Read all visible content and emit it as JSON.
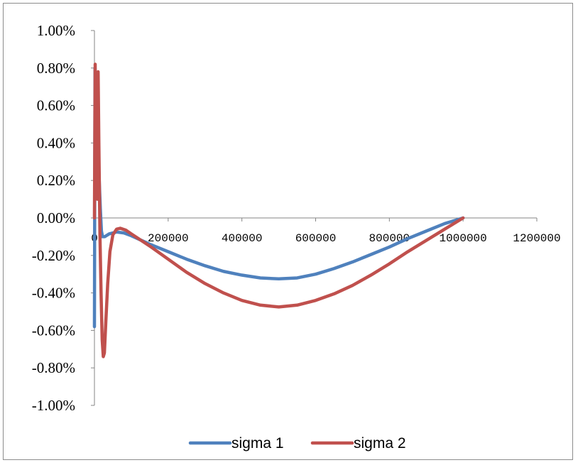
{
  "chart_data": {
    "type": "line",
    "title": "",
    "xlabel": "",
    "ylabel": "",
    "xlim": [
      0,
      1200000
    ],
    "ylim": [
      -1.0,
      1.0
    ],
    "y_unit": "%",
    "grid": false,
    "legend_position": "bottom",
    "x_ticks": [
      {
        "value": 0,
        "label": "0"
      },
      {
        "value": 200000,
        "label": "200000"
      },
      {
        "value": 400000,
        "label": "400000"
      },
      {
        "value": 600000,
        "label": "600000"
      },
      {
        "value": 800000,
        "label": "800000"
      },
      {
        "value": 1000000,
        "label": "1000000"
      },
      {
        "value": 1200000,
        "label": "1200000"
      }
    ],
    "y_ticks": [
      {
        "value": 1.0,
        "label": "1.00%"
      },
      {
        "value": 0.8,
        "label": "0.80%"
      },
      {
        "value": 0.6,
        "label": "0.60%"
      },
      {
        "value": 0.4,
        "label": "0.40%"
      },
      {
        "value": 0.2,
        "label": "0.20%"
      },
      {
        "value": 0.0,
        "label": "0.00%"
      },
      {
        "value": -0.2,
        "label": "-0.20%"
      },
      {
        "value": -0.4,
        "label": "-0.40%"
      },
      {
        "value": -0.6,
        "label": "-0.60%"
      },
      {
        "value": -0.8,
        "label": "-0.80%"
      },
      {
        "value": -1.0,
        "label": "-1.00%"
      }
    ],
    "series": [
      {
        "name": "sigma 1",
        "color": "#4f81bd",
        "points": [
          [
            0,
            -0.58
          ],
          [
            1500,
            0.8
          ],
          [
            4000,
            0.6
          ],
          [
            7000,
            0.45
          ],
          [
            10000,
            0.35
          ],
          [
            13000,
            0.2
          ],
          [
            16000,
            0.05
          ],
          [
            19000,
            -0.07
          ],
          [
            22000,
            -0.1
          ],
          [
            28000,
            -0.1
          ],
          [
            40000,
            -0.085
          ],
          [
            60000,
            -0.075
          ],
          [
            80000,
            -0.08
          ],
          [
            100000,
            -0.095
          ],
          [
            150000,
            -0.14
          ],
          [
            200000,
            -0.18
          ],
          [
            250000,
            -0.22
          ],
          [
            300000,
            -0.255
          ],
          [
            350000,
            -0.285
          ],
          [
            400000,
            -0.305
          ],
          [
            450000,
            -0.32
          ],
          [
            500000,
            -0.325
          ],
          [
            550000,
            -0.32
          ],
          [
            600000,
            -0.3
          ],
          [
            650000,
            -0.27
          ],
          [
            700000,
            -0.235
          ],
          [
            750000,
            -0.195
          ],
          [
            800000,
            -0.155
          ],
          [
            850000,
            -0.11
          ],
          [
            900000,
            -0.07
          ],
          [
            950000,
            -0.03
          ],
          [
            1000000,
            0.0
          ]
        ]
      },
      {
        "name": "sigma 2",
        "color": "#c0504d",
        "points": [
          [
            0,
            0.0
          ],
          [
            2000,
            0.82
          ],
          [
            4000,
            0.15
          ],
          [
            6000,
            0.45
          ],
          [
            8000,
            0.1
          ],
          [
            10000,
            0.78
          ],
          [
            12000,
            0.4
          ],
          [
            15000,
            -0.1
          ],
          [
            18000,
            -0.4
          ],
          [
            21000,
            -0.65
          ],
          [
            24000,
            -0.74
          ],
          [
            27000,
            -0.72
          ],
          [
            31000,
            -0.55
          ],
          [
            36000,
            -0.35
          ],
          [
            42000,
            -0.18
          ],
          [
            50000,
            -0.09
          ],
          [
            60000,
            -0.06
          ],
          [
            70000,
            -0.055
          ],
          [
            85000,
            -0.065
          ],
          [
            100000,
            -0.085
          ],
          [
            150000,
            -0.15
          ],
          [
            200000,
            -0.22
          ],
          [
            250000,
            -0.29
          ],
          [
            300000,
            -0.35
          ],
          [
            350000,
            -0.4
          ],
          [
            400000,
            -0.44
          ],
          [
            450000,
            -0.465
          ],
          [
            500000,
            -0.475
          ],
          [
            550000,
            -0.465
          ],
          [
            600000,
            -0.44
          ],
          [
            650000,
            -0.405
          ],
          [
            700000,
            -0.36
          ],
          [
            750000,
            -0.305
          ],
          [
            800000,
            -0.245
          ],
          [
            850000,
            -0.18
          ],
          [
            900000,
            -0.12
          ],
          [
            950000,
            -0.06
          ],
          [
            1000000,
            0.0
          ]
        ]
      }
    ]
  }
}
